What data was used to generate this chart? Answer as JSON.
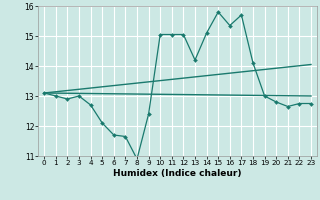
{
  "title": "",
  "xlabel": "Humidex (Indice chaleur)",
  "bg_color": "#cce8e4",
  "line_color": "#1a7a6e",
  "grid_color": "#ffffff",
  "xlim": [
    -0.5,
    23.5
  ],
  "ylim": [
    11,
    16
  ],
  "xticks": [
    0,
    1,
    2,
    3,
    4,
    5,
    6,
    7,
    8,
    9,
    10,
    11,
    12,
    13,
    14,
    15,
    16,
    17,
    18,
    19,
    20,
    21,
    22,
    23
  ],
  "yticks": [
    11,
    12,
    13,
    14,
    15,
    16
  ],
  "line1_x": [
    0,
    1,
    2,
    3,
    4,
    5,
    6,
    7,
    8,
    9,
    10,
    11,
    12,
    13,
    14,
    15,
    16,
    17,
    18,
    19,
    20,
    21,
    22,
    23
  ],
  "line1_y": [
    13.1,
    13.0,
    12.9,
    13.0,
    12.7,
    12.1,
    11.7,
    11.65,
    10.9,
    12.4,
    15.05,
    15.05,
    15.05,
    14.2,
    15.1,
    15.8,
    15.35,
    15.7,
    14.1,
    13.0,
    12.8,
    12.65,
    12.75,
    12.75
  ],
  "line2_x": [
    0,
    23
  ],
  "line2_y": [
    13.1,
    13.0
  ],
  "line3_x": [
    0,
    23
  ],
  "line3_y": [
    13.1,
    14.05
  ]
}
